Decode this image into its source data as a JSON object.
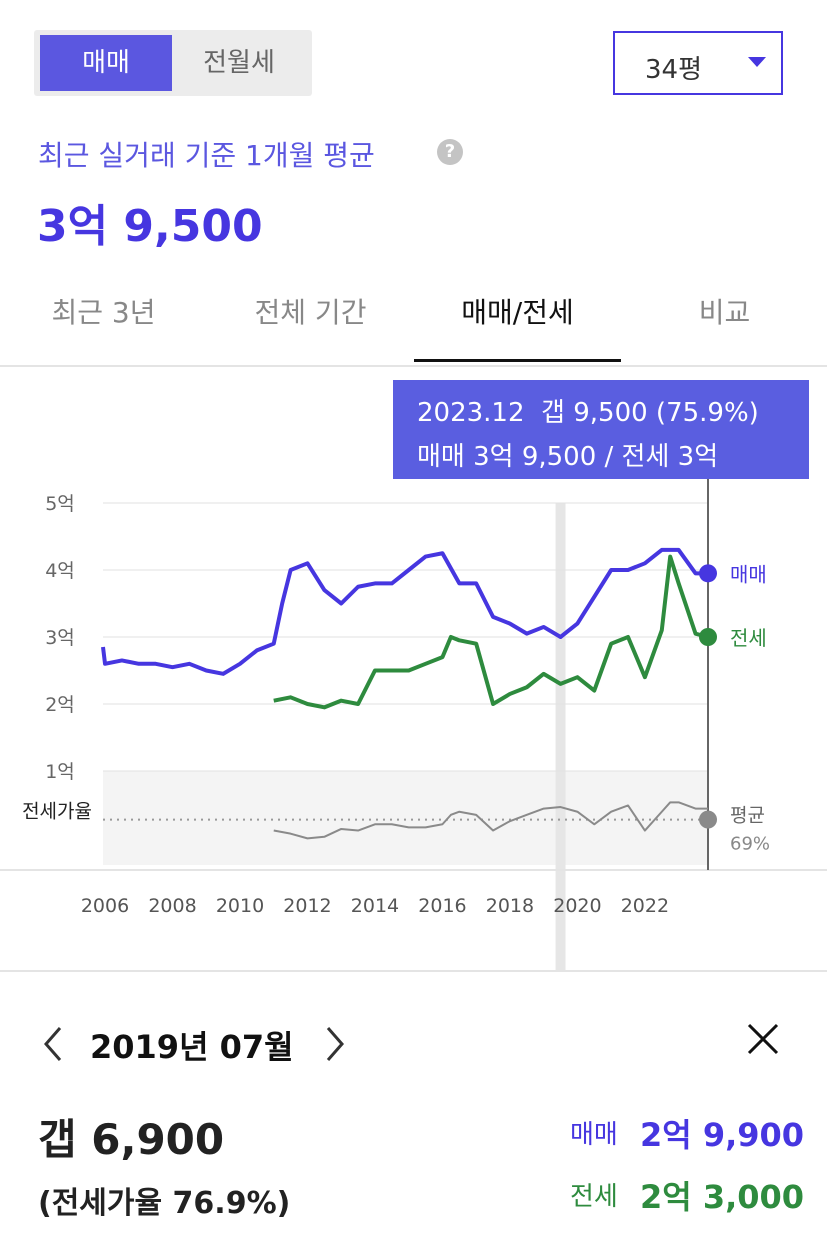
{
  "toggle": {
    "options": [
      "매매",
      "전월세"
    ],
    "selected": 0
  },
  "size_select": "34평",
  "summary": {
    "label": "최근 실거래 기준 1개월 평균",
    "price": "3억 9,500"
  },
  "tabs": {
    "items": [
      "최근 3년",
      "전체 기간",
      "매매/전세",
      "비교"
    ],
    "selected": 2
  },
  "tooltip": {
    "line1": "2023.12  갭 9,500 (75.9%)",
    "line2": "매매 3억 9,500 / 전세 3억"
  },
  "chart_data": {
    "type": "line",
    "xlim": [
      2005.94,
      2023.87
    ],
    "xticks": [
      2006,
      2008,
      2010,
      2012,
      2014,
      2016,
      2018,
      2020,
      2022
    ],
    "ylim": [
      1,
      5
    ],
    "yticks": [
      {
        "value": 1,
        "label": "1억"
      },
      {
        "value": 2,
        "label": "2억"
      },
      {
        "value": 3,
        "label": "3억"
      },
      {
        "value": 4,
        "label": "4억"
      },
      {
        "value": 5,
        "label": "5억"
      }
    ],
    "y2lim": [
      40,
      100
    ],
    "grid": true,
    "highlight_x": 2019.5,
    "y2_reference": {
      "name": "평균",
      "value": 69,
      "label": "69%"
    },
    "series": [
      {
        "name": "매매",
        "color": "#4636e0",
        "x": [
          2005.94,
          2006,
          2006.5,
          2007,
          2007.5,
          2008,
          2008.5,
          2009,
          2009.5,
          2010,
          2010.5,
          2011,
          2011.25,
          2011.5,
          2012,
          2012.5,
          2013,
          2013.5,
          2014,
          2014.5,
          2015,
          2015.5,
          2016,
          2016.5,
          2017,
          2017.5,
          2018,
          2018.5,
          2019,
          2019.5,
          2020,
          2020.5,
          2021,
          2021.5,
          2022,
          2022.5,
          2023,
          2023.5,
          2023.87
        ],
        "values": [
          2.85,
          2.6,
          2.65,
          2.6,
          2.6,
          2.55,
          2.6,
          2.5,
          2.45,
          2.6,
          2.8,
          2.9,
          3.5,
          4.0,
          4.1,
          3.7,
          3.5,
          3.75,
          3.8,
          3.8,
          4.0,
          4.2,
          4.25,
          3.8,
          3.8,
          3.3,
          3.2,
          3.05,
          3.15,
          3.0,
          3.2,
          3.6,
          4.0,
          4.0,
          4.1,
          4.3,
          4.3,
          3.95,
          3.95
        ]
      },
      {
        "name": "전세",
        "color": "#2e8b3e",
        "x": [
          2011,
          2011.5,
          2012,
          2012.5,
          2013,
          2013.5,
          2014,
          2014.5,
          2015,
          2015.5,
          2016,
          2016.25,
          2016.5,
          2017,
          2017.5,
          2018,
          2018.5,
          2019,
          2019.5,
          2020,
          2020.5,
          2021,
          2021.5,
          2022,
          2022.5,
          2022.75,
          2023,
          2023.5,
          2023.87
        ],
        "values": [
          2.05,
          2.1,
          2.0,
          1.95,
          2.05,
          2.0,
          2.5,
          2.5,
          2.5,
          2.6,
          2.7,
          3.0,
          2.95,
          2.9,
          2.0,
          2.15,
          2.25,
          2.45,
          2.3,
          2.4,
          2.2,
          2.9,
          3.0,
          2.4,
          3.1,
          4.2,
          3.8,
          3.05,
          3.0
        ]
      },
      {
        "name": "전세가율",
        "color": "#8a8a8a",
        "axis": "y2",
        "x": [
          2011,
          2011.5,
          2012,
          2012.5,
          2013,
          2013.5,
          2014,
          2014.5,
          2015,
          2015.5,
          2016,
          2016.25,
          2016.5,
          2017,
          2017.5,
          2018,
          2018.5,
          2019,
          2019.5,
          2020,
          2020.5,
          2021,
          2021.5,
          2022,
          2022.5,
          2022.75,
          2023,
          2023.5,
          2023.87
        ],
        "values": [
          62,
          60,
          57,
          58,
          63,
          62,
          66,
          66,
          64,
          64,
          66,
          72,
          74,
          72,
          62,
          68,
          72,
          76,
          77,
          74,
          66,
          74,
          78,
          62,
          74,
          80,
          80,
          76,
          76
        ]
      }
    ]
  },
  "detail": {
    "date": "2019년 07월",
    "gap": "갭 6,900",
    "ratio": "(전세가율 76.9%)",
    "rows": [
      {
        "label": "매매",
        "value": "2억 9,900"
      },
      {
        "label": "전세",
        "value": "2억 3,000"
      }
    ]
  }
}
